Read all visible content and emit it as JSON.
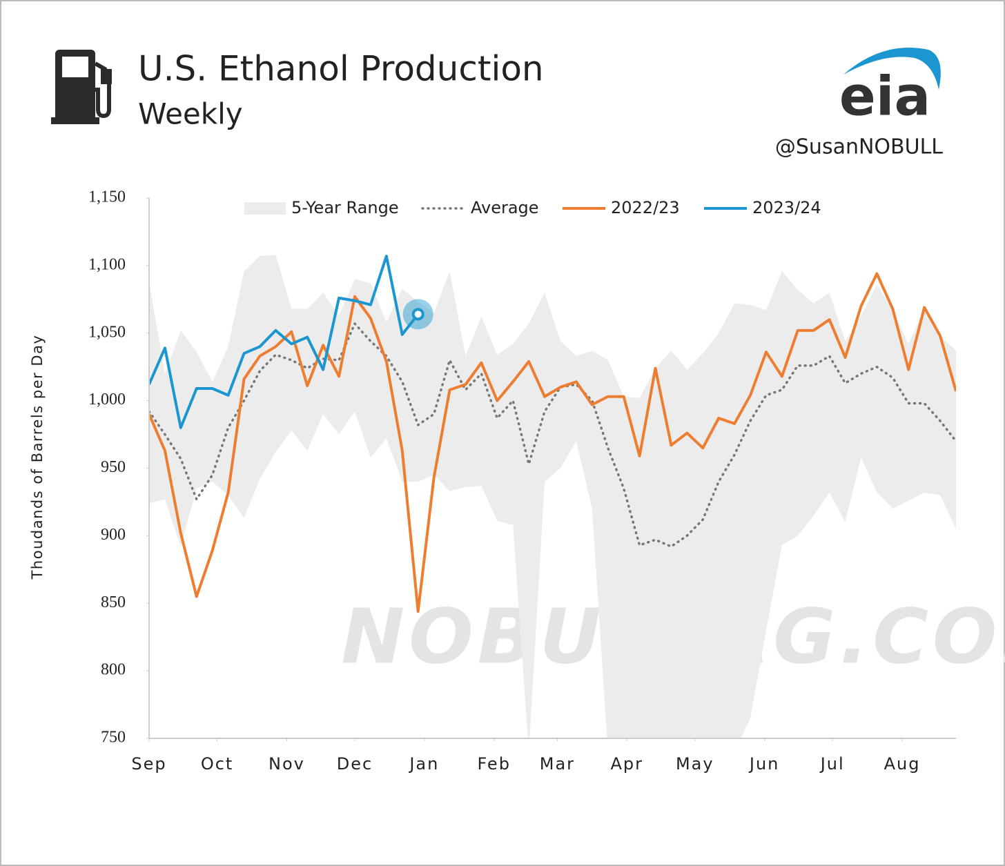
{
  "chart_data": {
    "type": "line",
    "title": "U.S. Ethanol Production",
    "subtitle": "Weekly",
    "source": "eia",
    "handle": "@SusanNOBULL",
    "watermark": "NOBULLAG.COM",
    "ylabel": "Thoudands of Barrels per Day",
    "x": [
      0,
      1,
      2,
      3,
      4,
      5,
      6,
      7,
      8,
      9,
      10,
      11,
      12,
      13,
      14,
      15,
      16,
      17,
      18,
      19,
      20,
      21,
      22,
      23,
      24,
      25,
      26,
      27,
      28,
      29,
      30,
      31,
      32,
      33,
      34,
      35,
      36,
      37,
      38,
      39,
      40,
      41,
      42,
      43,
      44,
      45,
      46,
      47,
      48,
      49,
      50,
      51
    ],
    "xlim": [
      0,
      51
    ],
    "xticks": [
      {
        "value": 0,
        "label": "Sep"
      },
      {
        "value": 4.3,
        "label": "Oct"
      },
      {
        "value": 8.7,
        "label": "Nov"
      },
      {
        "value": 13,
        "label": "Dec"
      },
      {
        "value": 17.4,
        "label": "Jan"
      },
      {
        "value": 21.8,
        "label": "Feb"
      },
      {
        "value": 25.8,
        "label": "Mar"
      },
      {
        "value": 30.2,
        "label": "Apr"
      },
      {
        "value": 34.5,
        "label": "May"
      },
      {
        "value": 38.9,
        "label": "Jun"
      },
      {
        "value": 43.2,
        "label": "Jul"
      },
      {
        "value": 47.6,
        "label": "Aug"
      }
    ],
    "ylim": [
      750,
      1150
    ],
    "yticks": [
      750,
      800,
      850,
      900,
      950,
      {
        "value": 1000,
        "label": "1,000"
      },
      {
        "value": 1050,
        "label": "1,050"
      },
      {
        "value": 1100,
        "label": "1,100"
      },
      {
        "value": 1150,
        "label": "1,150"
      }
    ],
    "grid": false,
    "range": {
      "name": "5-Year Range",
      "color": "#ececec",
      "upper": [
        1088,
        1020,
        1052,
        1036,
        1014,
        1040,
        1096,
        1107,
        1108,
        1068,
        1068,
        1080,
        1063,
        1090,
        1087,
        1058,
        1083,
        1073,
        1065,
        1096,
        1033,
        1062,
        1034,
        1042,
        1057,
        1080,
        1044,
        1033,
        1037,
        1030,
        1003,
        1002,
        1024,
        1037,
        1023,
        1035,
        1050,
        1072,
        1071,
        1067,
        1096,
        1082,
        1072,
        1080,
        1044,
        1063,
        1086,
        1067,
        1042,
        1068,
        1048,
        1037
      ],
      "lower": [
        924,
        927,
        892,
        935,
        940,
        930,
        913,
        942,
        962,
        978,
        963,
        990,
        975,
        992,
        958,
        972,
        940,
        940,
        945,
        933,
        936,
        937,
        911,
        908,
        740,
        940,
        950,
        970,
        920,
        740,
        740,
        740,
        740,
        740,
        740,
        740,
        740,
        740,
        765,
        830,
        893,
        900,
        915,
        932,
        910,
        958,
        932,
        920,
        926,
        932,
        930,
        905
      ]
    },
    "series": [
      {
        "name": "Average",
        "color": "#777777",
        "dashed": true,
        "values": [
          992,
          975,
          957,
          927,
          945,
          980,
          1000,
          1022,
          1034,
          1030,
          1024,
          1031,
          1030,
          1057,
          1044,
          1033,
          1014,
          982,
          990,
          1030,
          1008,
          1020,
          987,
          1000,
          953,
          992,
          1010,
          1012,
          1000,
          965,
          935,
          893,
          897,
          892,
          900,
          912,
          940,
          960,
          985,
          1004,
          1008,
          1026,
          1026,
          1033,
          1013,
          1020,
          1025,
          1017,
          998,
          998,
          985,
          970
        ]
      },
      {
        "name": "2022/23",
        "color": "#ed7d31",
        "values": [
          990,
          963,
          902,
          855,
          889,
          932,
          1016,
          1033,
          1040,
          1051,
          1011,
          1041,
          1018,
          1077,
          1061,
          1029,
          963,
          844,
          943,
          1008,
          1012,
          1028,
          1000,
          1014,
          1029,
          1003,
          1010,
          1014,
          997,
          1003,
          1003,
          959,
          1024,
          967,
          976,
          965,
          987,
          983,
          1004,
          1036,
          1018,
          1052,
          1052,
          1060,
          1032,
          1070,
          1094,
          1068,
          1023,
          1069,
          1048,
          1007
        ]
      },
      {
        "name": "2023/24",
        "color": "#1b96d0",
        "values": [
          1012,
          1039,
          980,
          1009,
          1009,
          1004,
          1035,
          1040,
          1052,
          1042,
          1047,
          1023,
          1076,
          1074,
          1071,
          1107,
          1049,
          1064,
          null,
          null,
          null,
          null,
          null,
          null,
          null,
          null,
          null,
          null,
          null,
          null,
          null,
          null,
          null,
          null,
          null,
          null,
          null,
          null,
          null,
          null,
          null,
          null,
          null,
          null,
          null,
          null,
          null,
          null,
          null,
          null,
          null,
          null
        ]
      }
    ]
  }
}
